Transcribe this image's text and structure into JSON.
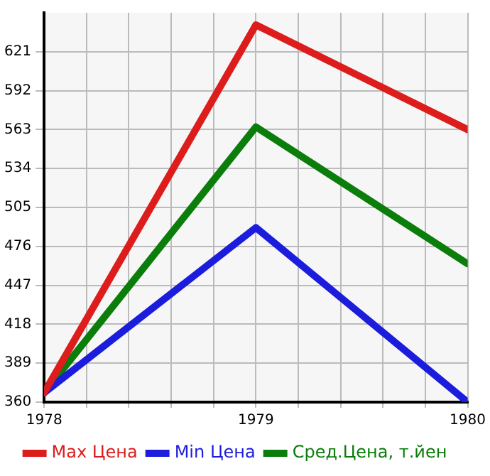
{
  "chart_data": {
    "type": "line",
    "x": [
      1978,
      1979,
      1980
    ],
    "series": [
      {
        "name": "Max Цена",
        "color": "#dd1c1c",
        "values": [
          367,
          641,
          563
        ]
      },
      {
        "name": "Min Цена",
        "color": "#1c1cdd",
        "values": [
          367,
          490,
          360
        ]
      },
      {
        "name": "Сред.Цена, т.йен",
        "color": "#0a7d0a",
        "values": [
          367,
          565,
          463
        ]
      }
    ],
    "xlim": [
      1978,
      1980
    ],
    "xticks": [
      1978,
      {
        "value": 1978.2,
        "label": null
      },
      {
        "value": 1978.4,
        "label": null
      },
      {
        "value": 1978.6,
        "label": null
      },
      {
        "value": 1978.8,
        "label": null
      },
      1979,
      {
        "value": 1979.2,
        "label": null
      },
      {
        "value": 1979.4,
        "label": null
      },
      {
        "value": 1979.6,
        "label": null
      },
      {
        "value": 1979.8,
        "label": null
      },
      1980
    ],
    "ylim": [
      360,
      650
    ],
    "yticks": [
      360,
      389,
      418,
      447,
      476,
      505,
      534,
      563,
      592,
      621
    ],
    "grid": true,
    "legend": "bottom",
    "marker": "none",
    "line_style": "solid"
  }
}
